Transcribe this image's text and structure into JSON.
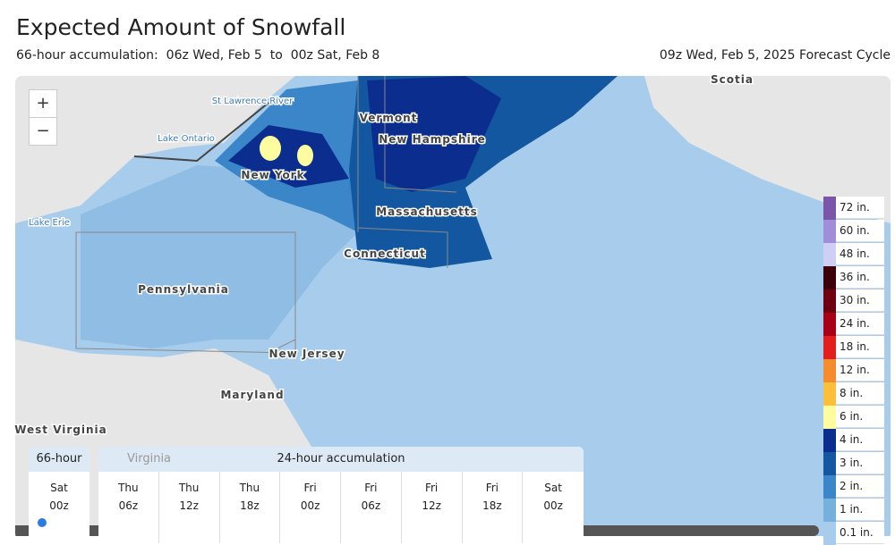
{
  "header": {
    "title": "Expected Amount of Snowfall",
    "subtitle_label": "66-hour accumulation:",
    "start": "06z Wed, Feb 5",
    "to": "to",
    "end": "00z Sat, Feb 8",
    "cycle": "09z Wed, Feb 5, 2025 Forecast Cycle"
  },
  "zoom": {
    "in": "+",
    "out": "−"
  },
  "map_labels": [
    "St Lawrence River",
    "Lake Ontario",
    "Lake Erie",
    "New York",
    "Vermont",
    "New Hampshire",
    "Massachusetts",
    "Connecticut",
    "Pennsylvania",
    "New Jersey",
    "Maryland",
    "West Virginia",
    "Scotia"
  ],
  "legend": [
    {
      "label": "72 in.",
      "color": "#7b55a8"
    },
    {
      "label": "60 in.",
      "color": "#a08fd8"
    },
    {
      "label": "48 in.",
      "color": "#cfcff5"
    },
    {
      "label": "36 in.",
      "color": "#3d0008"
    },
    {
      "label": "30 in.",
      "color": "#6e0010"
    },
    {
      "label": "24 in.",
      "color": "#a80016"
    },
    {
      "label": "18 in.",
      "color": "#e11f1f"
    },
    {
      "label": "12 in.",
      "color": "#f58c2e"
    },
    {
      "label": "8 in.",
      "color": "#fbbf3c"
    },
    {
      "label": "6 in.",
      "color": "#fdfda0"
    },
    {
      "label": "4 in.",
      "color": "#0b2e8e"
    },
    {
      "label": "3 in.",
      "color": "#1257a0"
    },
    {
      "label": "2 in.",
      "color": "#3a86c8"
    },
    {
      "label": "1 in.",
      "color": "#76b0dc"
    },
    {
      "label": "0.1 in.",
      "color": "#a8cdec"
    }
  ],
  "panel": {
    "total": {
      "title": "66-hour",
      "day": "Sat",
      "time": "00z"
    },
    "daily": {
      "title": "24-hour accumulation",
      "behind": "Virginia",
      "columns": [
        {
          "day": "Thu",
          "time": "06z"
        },
        {
          "day": "Thu",
          "time": "12z"
        },
        {
          "day": "Thu",
          "time": "18z"
        },
        {
          "day": "Fri",
          "time": "00z"
        },
        {
          "day": "Fri",
          "time": "06z"
        },
        {
          "day": "Fri",
          "time": "12z"
        },
        {
          "day": "Fri",
          "time": "18z"
        },
        {
          "day": "Sat",
          "time": "00z"
        }
      ]
    }
  }
}
